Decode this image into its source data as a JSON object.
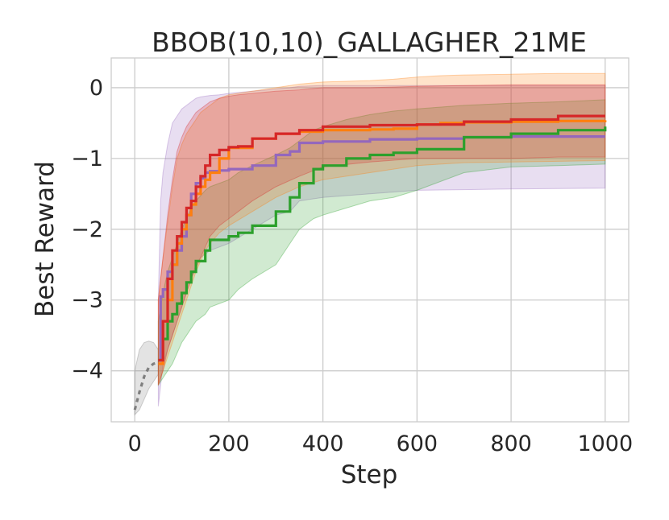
{
  "chart_data": {
    "type": "line",
    "title": "BBOB(10,10)_GALLAGHER_21ME",
    "xlabel": "Step",
    "ylabel": "Best Reward",
    "xlim": [
      -50,
      1050
    ],
    "ylim": [
      -4.72,
      0.42
    ],
    "xticks": [
      0,
      200,
      400,
      600,
      800,
      1000
    ],
    "yticks": [
      0,
      -1,
      -2,
      -3,
      -4
    ],
    "xtick_labels": [
      "0",
      "200",
      "400",
      "600",
      "800",
      "1000"
    ],
    "ytick_labels": [
      "0",
      "−1",
      "−2",
      "−3",
      "−4"
    ],
    "grid": true,
    "legend": "none",
    "series": [
      {
        "color": "#7f7f7f",
        "dashed": true,
        "x": [
          0,
          10,
          20,
          30,
          40,
          50
        ],
        "y": [
          -4.55,
          -4.3,
          -4.08,
          -3.95,
          -3.9,
          -3.88
        ],
        "band_upper": [
          -4.0,
          -3.7,
          -3.6,
          -3.58,
          -3.6,
          -3.7
        ],
        "band_lower": [
          -4.62,
          -4.55,
          -4.4,
          -4.25,
          -4.15,
          -4.05
        ]
      },
      {
        "color": "#9467bd",
        "x": [
          50,
          55,
          60,
          70,
          80,
          90,
          100,
          110,
          120,
          130,
          140,
          150,
          160,
          180,
          200,
          250,
          300,
          330,
          350,
          400,
          500,
          600,
          700,
          800,
          1000
        ],
        "y": [
          -3.85,
          -2.95,
          -2.85,
          -2.6,
          -2.5,
          -2.3,
          -2.1,
          -1.8,
          -1.5,
          -1.35,
          -1.28,
          -1.2,
          -1.18,
          -1.17,
          -1.15,
          -1.1,
          -0.95,
          -0.9,
          -0.78,
          -0.76,
          -0.73,
          -0.72,
          -0.7,
          -0.69,
          -0.69
        ],
        "band_upper": [
          -3.0,
          -1.6,
          -1.2,
          -0.8,
          -0.5,
          -0.4,
          -0.3,
          -0.25,
          -0.2,
          -0.15,
          -0.13,
          -0.12,
          -0.11,
          -0.1,
          -0.08,
          -0.05,
          -0.02,
          0.0,
          0.02,
          0.03,
          0.03,
          0.03,
          0.03,
          0.03,
          0.03
        ],
        "band_lower": [
          -4.5,
          -4.2,
          -3.9,
          -3.7,
          -3.5,
          -3.3,
          -3.1,
          -2.9,
          -2.7,
          -2.5,
          -2.4,
          -2.35,
          -2.3,
          -2.25,
          -2.2,
          -2.0,
          -1.8,
          -1.75,
          -1.6,
          -1.55,
          -1.5,
          -1.45,
          -1.44,
          -1.43,
          -1.42
        ]
      },
      {
        "color": "#2ca02c",
        "x": [
          50,
          60,
          70,
          80,
          90,
          100,
          110,
          120,
          130,
          150,
          160,
          200,
          220,
          250,
          300,
          330,
          350,
          380,
          400,
          450,
          500,
          550,
          600,
          700,
          800,
          900,
          1000
        ],
        "y": [
          -3.85,
          -3.55,
          -3.3,
          -3.2,
          -3.05,
          -2.9,
          -2.75,
          -2.6,
          -2.45,
          -2.3,
          -2.15,
          -2.1,
          -2.05,
          -1.95,
          -1.75,
          -1.55,
          -1.35,
          -1.15,
          -1.1,
          -1.0,
          -0.95,
          -0.92,
          -0.87,
          -0.7,
          -0.65,
          -0.6,
          -0.55
        ],
        "band_upper": [
          -3.3,
          -2.9,
          -2.6,
          -2.4,
          -2.2,
          -2.0,
          -1.85,
          -1.7,
          -1.6,
          -1.45,
          -1.4,
          -1.3,
          -1.2,
          -1.1,
          -0.95,
          -0.85,
          -0.75,
          -0.6,
          -0.55,
          -0.45,
          -0.38,
          -0.33,
          -0.3,
          -0.25,
          -0.22,
          -0.2,
          -0.17
        ],
        "band_lower": [
          -4.2,
          -4.1,
          -4.0,
          -3.9,
          -3.75,
          -3.6,
          -3.5,
          -3.4,
          -3.3,
          -3.2,
          -3.1,
          -3.0,
          -2.85,
          -2.7,
          -2.5,
          -2.2,
          -2.0,
          -1.85,
          -1.8,
          -1.7,
          -1.6,
          -1.55,
          -1.45,
          -1.2,
          -1.12,
          -1.1,
          -1.08
        ]
      },
      {
        "color": "#ff7f0e",
        "x": [
          50,
          60,
          70,
          80,
          90,
          100,
          110,
          120,
          130,
          140,
          150,
          160,
          180,
          200,
          250,
          300,
          350,
          400,
          500,
          550,
          600,
          650,
          700,
          800,
          900,
          1000
        ],
        "y": [
          -3.9,
          -3.3,
          -3.0,
          -2.5,
          -2.2,
          -2.0,
          -1.8,
          -1.65,
          -1.5,
          -1.4,
          -1.3,
          -1.2,
          -1.0,
          -0.85,
          -0.72,
          -0.65,
          -0.62,
          -0.6,
          -0.59,
          -0.58,
          -0.52,
          -0.5,
          -0.49,
          -0.48,
          -0.47,
          -0.46
        ],
        "band_upper": [
          -3.0,
          -2.4,
          -1.9,
          -1.4,
          -1.0,
          -0.8,
          -0.65,
          -0.55,
          -0.45,
          -0.35,
          -0.3,
          -0.25,
          -0.15,
          -0.1,
          -0.05,
          0.0,
          0.05,
          0.08,
          0.1,
          0.12,
          0.15,
          0.17,
          0.18,
          0.19,
          0.2,
          0.2
        ],
        "band_lower": [
          -4.2,
          -4.0,
          -3.8,
          -3.6,
          -3.4,
          -3.2,
          -3.0,
          -2.8,
          -2.6,
          -2.45,
          -2.3,
          -2.2,
          -2.05,
          -1.95,
          -1.75,
          -1.55,
          -1.4,
          -1.3,
          -1.2,
          -1.15,
          -1.1,
          -1.08,
          -1.06,
          -1.05,
          -1.04,
          -1.03
        ]
      },
      {
        "color": "#d62728",
        "x": [
          50,
          60,
          70,
          80,
          90,
          100,
          110,
          120,
          130,
          140,
          150,
          160,
          180,
          200,
          220,
          250,
          300,
          350,
          400,
          500,
          600,
          700,
          800,
          900,
          1000
        ],
        "y": [
          -3.85,
          -3.3,
          -2.7,
          -2.3,
          -2.1,
          -1.9,
          -1.7,
          -1.6,
          -1.4,
          -1.25,
          -1.1,
          -0.95,
          -0.88,
          -0.84,
          -0.83,
          -0.72,
          -0.65,
          -0.6,
          -0.55,
          -0.53,
          -0.52,
          -0.48,
          -0.45,
          -0.4,
          -0.4
        ],
        "band_upper": [
          -3.0,
          -2.4,
          -1.8,
          -1.3,
          -0.9,
          -0.7,
          -0.55,
          -0.45,
          -0.35,
          -0.3,
          -0.25,
          -0.2,
          -0.15,
          -0.12,
          -0.1,
          -0.08,
          -0.05,
          -0.03,
          0.0,
          0.0,
          0.02,
          0.03,
          0.04,
          0.04,
          0.04
        ],
        "band_lower": [
          -4.2,
          -4.0,
          -3.7,
          -3.5,
          -3.3,
          -3.1,
          -2.9,
          -2.7,
          -2.55,
          -2.4,
          -2.25,
          -2.1,
          -1.95,
          -1.85,
          -1.75,
          -1.6,
          -1.4,
          -1.25,
          -1.12,
          -1.05,
          -1.0,
          -1.0,
          -1.0,
          -0.98,
          -0.98
        ]
      }
    ]
  }
}
